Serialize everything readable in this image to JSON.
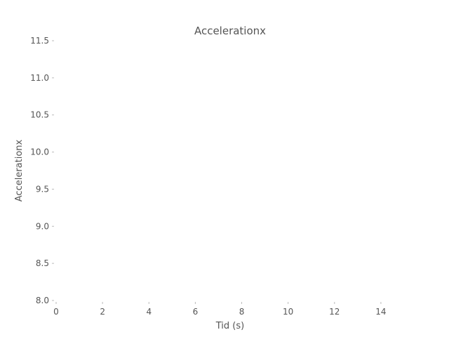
{
  "chart_data": {
    "type": "line",
    "title": "Accelerationx",
    "xlabel": "Tid (s)",
    "ylabel": "Accelerationx",
    "xlim": [
      0,
      15
    ],
    "ylim": [
      8.0,
      11.5
    ],
    "xticks": [
      0,
      2,
      4,
      6,
      8,
      10,
      12,
      14
    ],
    "xtick_labels": [
      "0",
      "2",
      "4",
      "6",
      "8",
      "10",
      "12",
      "14"
    ],
    "yticks": [
      8.0,
      8.5,
      9.0,
      9.5,
      10.0,
      10.5,
      11.0,
      11.5
    ],
    "ytick_labels": [
      "8.0",
      "8.5",
      "9.0",
      "9.5",
      "10.0",
      "10.5",
      "11.0",
      "11.5"
    ],
    "grid": false,
    "series": [
      {
        "x": [],
        "y": []
      }
    ]
  }
}
